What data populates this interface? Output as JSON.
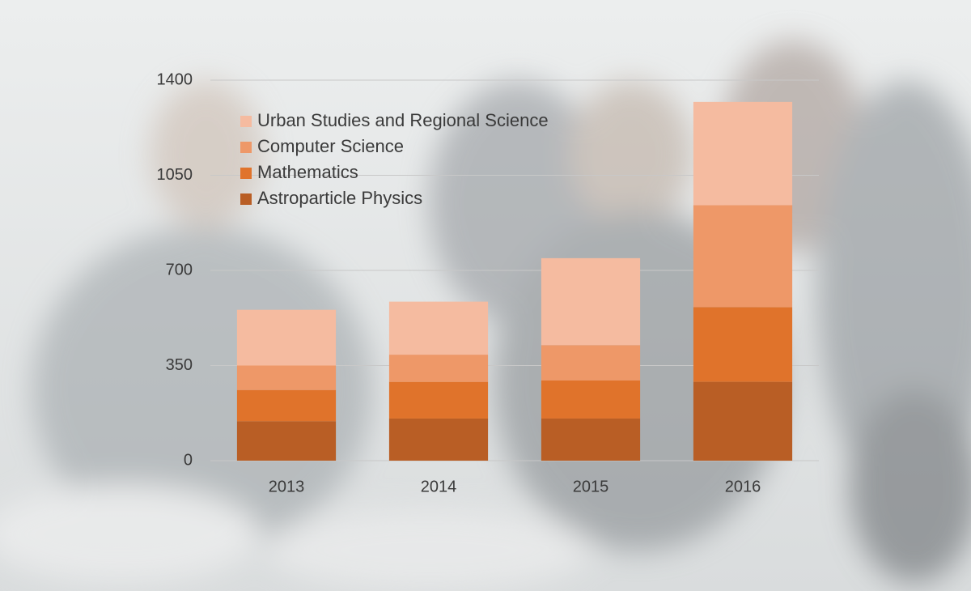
{
  "chart_data": {
    "type": "bar",
    "stacked": true,
    "categories": [
      "2013",
      "2014",
      "2015",
      "2016"
    ],
    "series": [
      {
        "name": "Astroparticle Physics",
        "color": "#b95e25",
        "values": [
          145,
          155,
          155,
          290
        ]
      },
      {
        "name": "Mathematics",
        "color": "#e0732b",
        "values": [
          115,
          135,
          140,
          275
        ]
      },
      {
        "name": "Computer Science",
        "color": "#ee9868",
        "values": [
          90,
          100,
          130,
          375
        ]
      },
      {
        "name": "Urban Studies and Regional Science",
        "color": "#f5bba0",
        "values": [
          205,
          195,
          320,
          380
        ]
      }
    ],
    "ylim": [
      0,
      1400
    ],
    "yticks": [
      0,
      350,
      700,
      1050,
      1400
    ],
    "grid": true,
    "legend": "top-left"
  }
}
